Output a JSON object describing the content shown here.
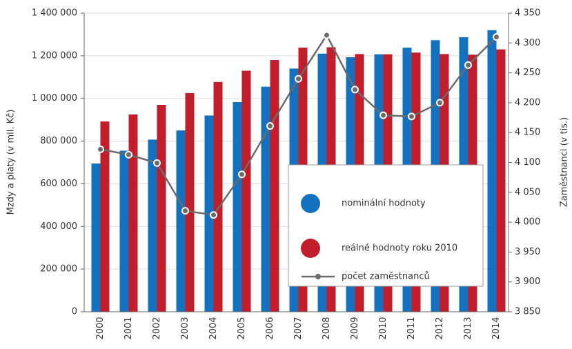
{
  "chart_data": {
    "type": "bar",
    "ylabel": "Mzdy a platy (v mil. Kč)",
    "y2label": "Zaměstnanci (v tis.)",
    "categories": [
      "2000",
      "2001",
      "2002",
      "2003",
      "2004",
      "2005",
      "2006",
      "2007",
      "2008",
      "2009",
      "2010",
      "2011",
      "2012",
      "2013",
      "2014"
    ],
    "series": [
      {
        "name": "nominální hodnoty",
        "color": "#1371bf",
        "values": [
          695000,
          755000,
          807000,
          850000,
          920000,
          983000,
          1055000,
          1140000,
          1210000,
          1193000,
          1207000,
          1238000,
          1273000,
          1287000,
          1320000
        ]
      },
      {
        "name": "reálné hodnoty roku 2010",
        "color": "#c21d2b",
        "values": [
          892000,
          925000,
          970000,
          1025000,
          1077000,
          1130000,
          1180000,
          1238000,
          1240000,
          1208000,
          1207000,
          1215000,
          1208000,
          1205000,
          1230000
        ]
      },
      {
        "name": "počet zaměstnanců",
        "color": "#6b6b6b",
        "axis": "y2",
        "values": [
          4122,
          4113,
          4099,
          4019,
          4012,
          4080,
          4161,
          4240,
          4313,
          4222,
          4179,
          4177,
          4200,
          4263,
          4310
        ]
      }
    ],
    "ylim": [
      0,
      1400000
    ],
    "yticks": [
      0,
      {
        "value": 200000,
        "label": "200 000"
      },
      {
        "value": 400000,
        "label": "400 000"
      },
      {
        "value": 600000,
        "label": "600 000"
      },
      {
        "value": 800000,
        "label": "800 000"
      },
      {
        "value": 1000000,
        "label": "1 000 000"
      },
      {
        "value": 1200000,
        "label": "1 200 000"
      },
      {
        "value": 1400000,
        "label": "1 400 000"
      }
    ],
    "y2lim": [
      3850,
      4350
    ],
    "y2ticks": [
      {
        "value": 3850,
        "label": "3 850"
      },
      {
        "value": 3900,
        "label": "3 900"
      },
      {
        "value": 3950,
        "label": "3 950"
      },
      {
        "value": 4000,
        "label": "4 000"
      },
      {
        "value": 4050,
        "label": "4 050"
      },
      {
        "value": 4100,
        "label": "4 100"
      },
      {
        "value": 4150,
        "label": "4 150"
      },
      {
        "value": 4200,
        "label": "4 200"
      },
      {
        "value": 4250,
        "label": "4 250"
      },
      {
        "value": 4300,
        "label": "4 300"
      },
      {
        "value": 4350,
        "label": "4 350"
      }
    ],
    "grid": true
  }
}
